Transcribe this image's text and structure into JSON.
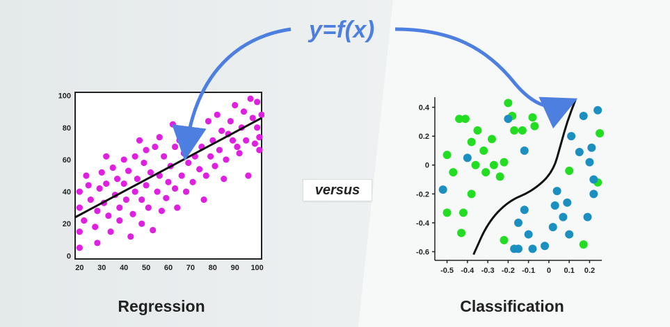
{
  "formula": "y=f(x)",
  "versus_label": "versus",
  "regression": {
    "title": "Regression",
    "x_ticks": [
      "20",
      "30",
      "40",
      "50",
      "60",
      "70",
      "80",
      "90",
      "100"
    ],
    "y_ticks": [
      "0",
      "20",
      "40",
      "60",
      "80",
      "100"
    ],
    "point_color": "#e020e0",
    "line_color": "#111111"
  },
  "classification": {
    "title": "Classification",
    "x_ticks": [
      "-0.5",
      "-0.4",
      "-0.3",
      "-0.2",
      "-0.1",
      "0",
      "0.1",
      "0.2"
    ],
    "y_ticks": [
      "0.4",
      "0.2",
      "0",
      "-0.2",
      "-0.4",
      "-0.6"
    ],
    "class_a_color": "#22dd22",
    "class_b_color": "#1a8fc0",
    "boundary_color": "#111111"
  },
  "arrow_color": "#4d7fe0",
  "chart_data": [
    {
      "type": "scatter",
      "title": "Regression",
      "xlim": [
        18,
        102
      ],
      "ylim": [
        -2,
        102
      ],
      "series": [
        {
          "points": [
            [
              20,
              5
            ],
            [
              20,
              15
            ],
            [
              20,
              30
            ],
            [
              20,
              40
            ],
            [
              22,
              22
            ],
            [
              23,
              50
            ],
            [
              24,
              44
            ],
            [
              25,
              35
            ],
            [
              27,
              18
            ],
            [
              28,
              8
            ],
            [
              28,
              28
            ],
            [
              29,
              42
            ],
            [
              30,
              52
            ],
            [
              31,
              33
            ],
            [
              32,
              45
            ],
            [
              32,
              62
            ],
            [
              33,
              25
            ],
            [
              34,
              15
            ],
            [
              35,
              55
            ],
            [
              36,
              38
            ],
            [
              37,
              48
            ],
            [
              38,
              30
            ],
            [
              38,
              22
            ],
            [
              40,
              45
            ],
            [
              40,
              60
            ],
            [
              41,
              35
            ],
            [
              42,
              53
            ],
            [
              43,
              12
            ],
            [
              44,
              26
            ],
            [
              45,
              40
            ],
            [
              45,
              62
            ],
            [
              46,
              48
            ],
            [
              47,
              72
            ],
            [
              48,
              35
            ],
            [
              48,
              20
            ],
            [
              49,
              58
            ],
            [
              50,
              66
            ],
            [
              50,
              44
            ],
            [
              51,
              30
            ],
            [
              52,
              52
            ],
            [
              53,
              16
            ],
            [
              54,
              68
            ],
            [
              55,
              40
            ],
            [
              56,
              74
            ],
            [
              56,
              50
            ],
            [
              57,
              28
            ],
            [
              58,
              62
            ],
            [
              59,
              36
            ],
            [
              60,
              46
            ],
            [
              61,
              56
            ],
            [
              62,
              82
            ],
            [
              63,
              42
            ],
            [
              63,
              68
            ],
            [
              64,
              30
            ],
            [
              65,
              72
            ],
            [
              66,
              50
            ],
            [
              67,
              64
            ],
            [
              68,
              40
            ],
            [
              69,
              58
            ],
            [
              70,
              76
            ],
            [
              71,
              46
            ],
            [
              72,
              62
            ],
            [
              73,
              78
            ],
            [
              74,
              54
            ],
            [
              75,
              68
            ],
            [
              76,
              35
            ],
            [
              77,
              50
            ],
            [
              78,
              84
            ],
            [
              79,
              62
            ],
            [
              80,
              72
            ],
            [
              81,
              56
            ],
            [
              82,
              88
            ],
            [
              83,
              66
            ],
            [
              84,
              78
            ],
            [
              85,
              48
            ],
            [
              86,
              60
            ],
            [
              87,
              76
            ],
            [
              88,
              84
            ],
            [
              89,
              72
            ],
            [
              90,
              94
            ],
            [
              91,
              68
            ],
            [
              92,
              64
            ],
            [
              93,
              80
            ],
            [
              94,
              90
            ],
            [
              95,
              72
            ],
            [
              96,
              50
            ],
            [
              97,
              98
            ],
            [
              98,
              86
            ],
            [
              99,
              70
            ],
            [
              100,
              96
            ],
            [
              100,
              80
            ],
            [
              101,
              66
            ],
            [
              101,
              74
            ],
            [
              102,
              88
            ]
          ]
        }
      ],
      "fit_line": [
        [
          18,
          24
        ],
        [
          102,
          86
        ]
      ]
    },
    {
      "type": "scatter",
      "title": "Classification",
      "xlim": [
        -0.56,
        0.26
      ],
      "ylim": [
        -0.66,
        0.47
      ],
      "series": [
        {
          "name": "",
          "color": "#22dd22",
          "points": [
            [
              -0.5,
              0.07
            ],
            [
              -0.47,
              -0.05
            ],
            [
              -0.41,
              0.32
            ],
            [
              -0.38,
              0.16
            ],
            [
              -0.36,
              0.0
            ],
            [
              -0.35,
              0.24
            ],
            [
              -0.32,
              0.1
            ],
            [
              -0.31,
              -0.05
            ],
            [
              -0.28,
              0.18
            ],
            [
              -0.27,
              0.0
            ],
            [
              -0.22,
              0.02
            ],
            [
              -0.2,
              0.43
            ],
            [
              -0.18,
              0.34
            ],
            [
              -0.17,
              0.24
            ],
            [
              -0.13,
              0.24
            ],
            [
              -0.08,
              0.33
            ],
            [
              -0.07,
              0.27
            ],
            [
              -0.38,
              -0.2
            ],
            [
              -0.42,
              -0.33
            ],
            [
              -0.5,
              -0.33
            ],
            [
              -0.43,
              -0.47
            ],
            [
              -0.24,
              -0.08
            ],
            [
              -0.22,
              -0.52
            ],
            [
              0.1,
              -0.04
            ],
            [
              0.25,
              0.22
            ],
            [
              0.24,
              -0.12
            ],
            [
              0.17,
              -0.55
            ],
            [
              -0.44,
              0.32
            ]
          ]
        },
        {
          "name": "",
          "color": "#1a8fc0",
          "points": [
            [
              -0.52,
              -0.17
            ],
            [
              -0.4,
              0.05
            ],
            [
              -0.2,
              0.32
            ],
            [
              -0.12,
              0.1
            ],
            [
              -0.12,
              -0.31
            ],
            [
              -0.15,
              -0.4
            ],
            [
              -0.17,
              -0.58
            ],
            [
              -0.15,
              -0.58
            ],
            [
              -0.08,
              -0.58
            ],
            [
              -0.1,
              -0.48
            ],
            [
              -0.02,
              -0.56
            ],
            [
              0.02,
              -0.43
            ],
            [
              0.03,
              -0.28
            ],
            [
              0.04,
              -0.18
            ],
            [
              0.07,
              -0.36
            ],
            [
              0.09,
              -0.26
            ],
            [
              0.1,
              -0.48
            ],
            [
              0.11,
              0.2
            ],
            [
              0.15,
              0.09
            ],
            [
              0.17,
              0.34
            ],
            [
              0.19,
              -0.36
            ],
            [
              0.2,
              0.02
            ],
            [
              0.21,
              0.12
            ],
            [
              0.22,
              -0.2
            ],
            [
              0.24,
              0.38
            ],
            [
              0.22,
              -0.1
            ]
          ]
        }
      ],
      "boundary": [
        [
          -0.37,
          -0.62
        ],
        [
          -0.3,
          -0.4
        ],
        [
          -0.2,
          -0.25
        ],
        [
          -0.08,
          -0.18
        ],
        [
          0.02,
          -0.05
        ],
        [
          0.06,
          0.15
        ],
        [
          0.09,
          0.3
        ],
        [
          0.13,
          0.45
        ]
      ]
    }
  ]
}
